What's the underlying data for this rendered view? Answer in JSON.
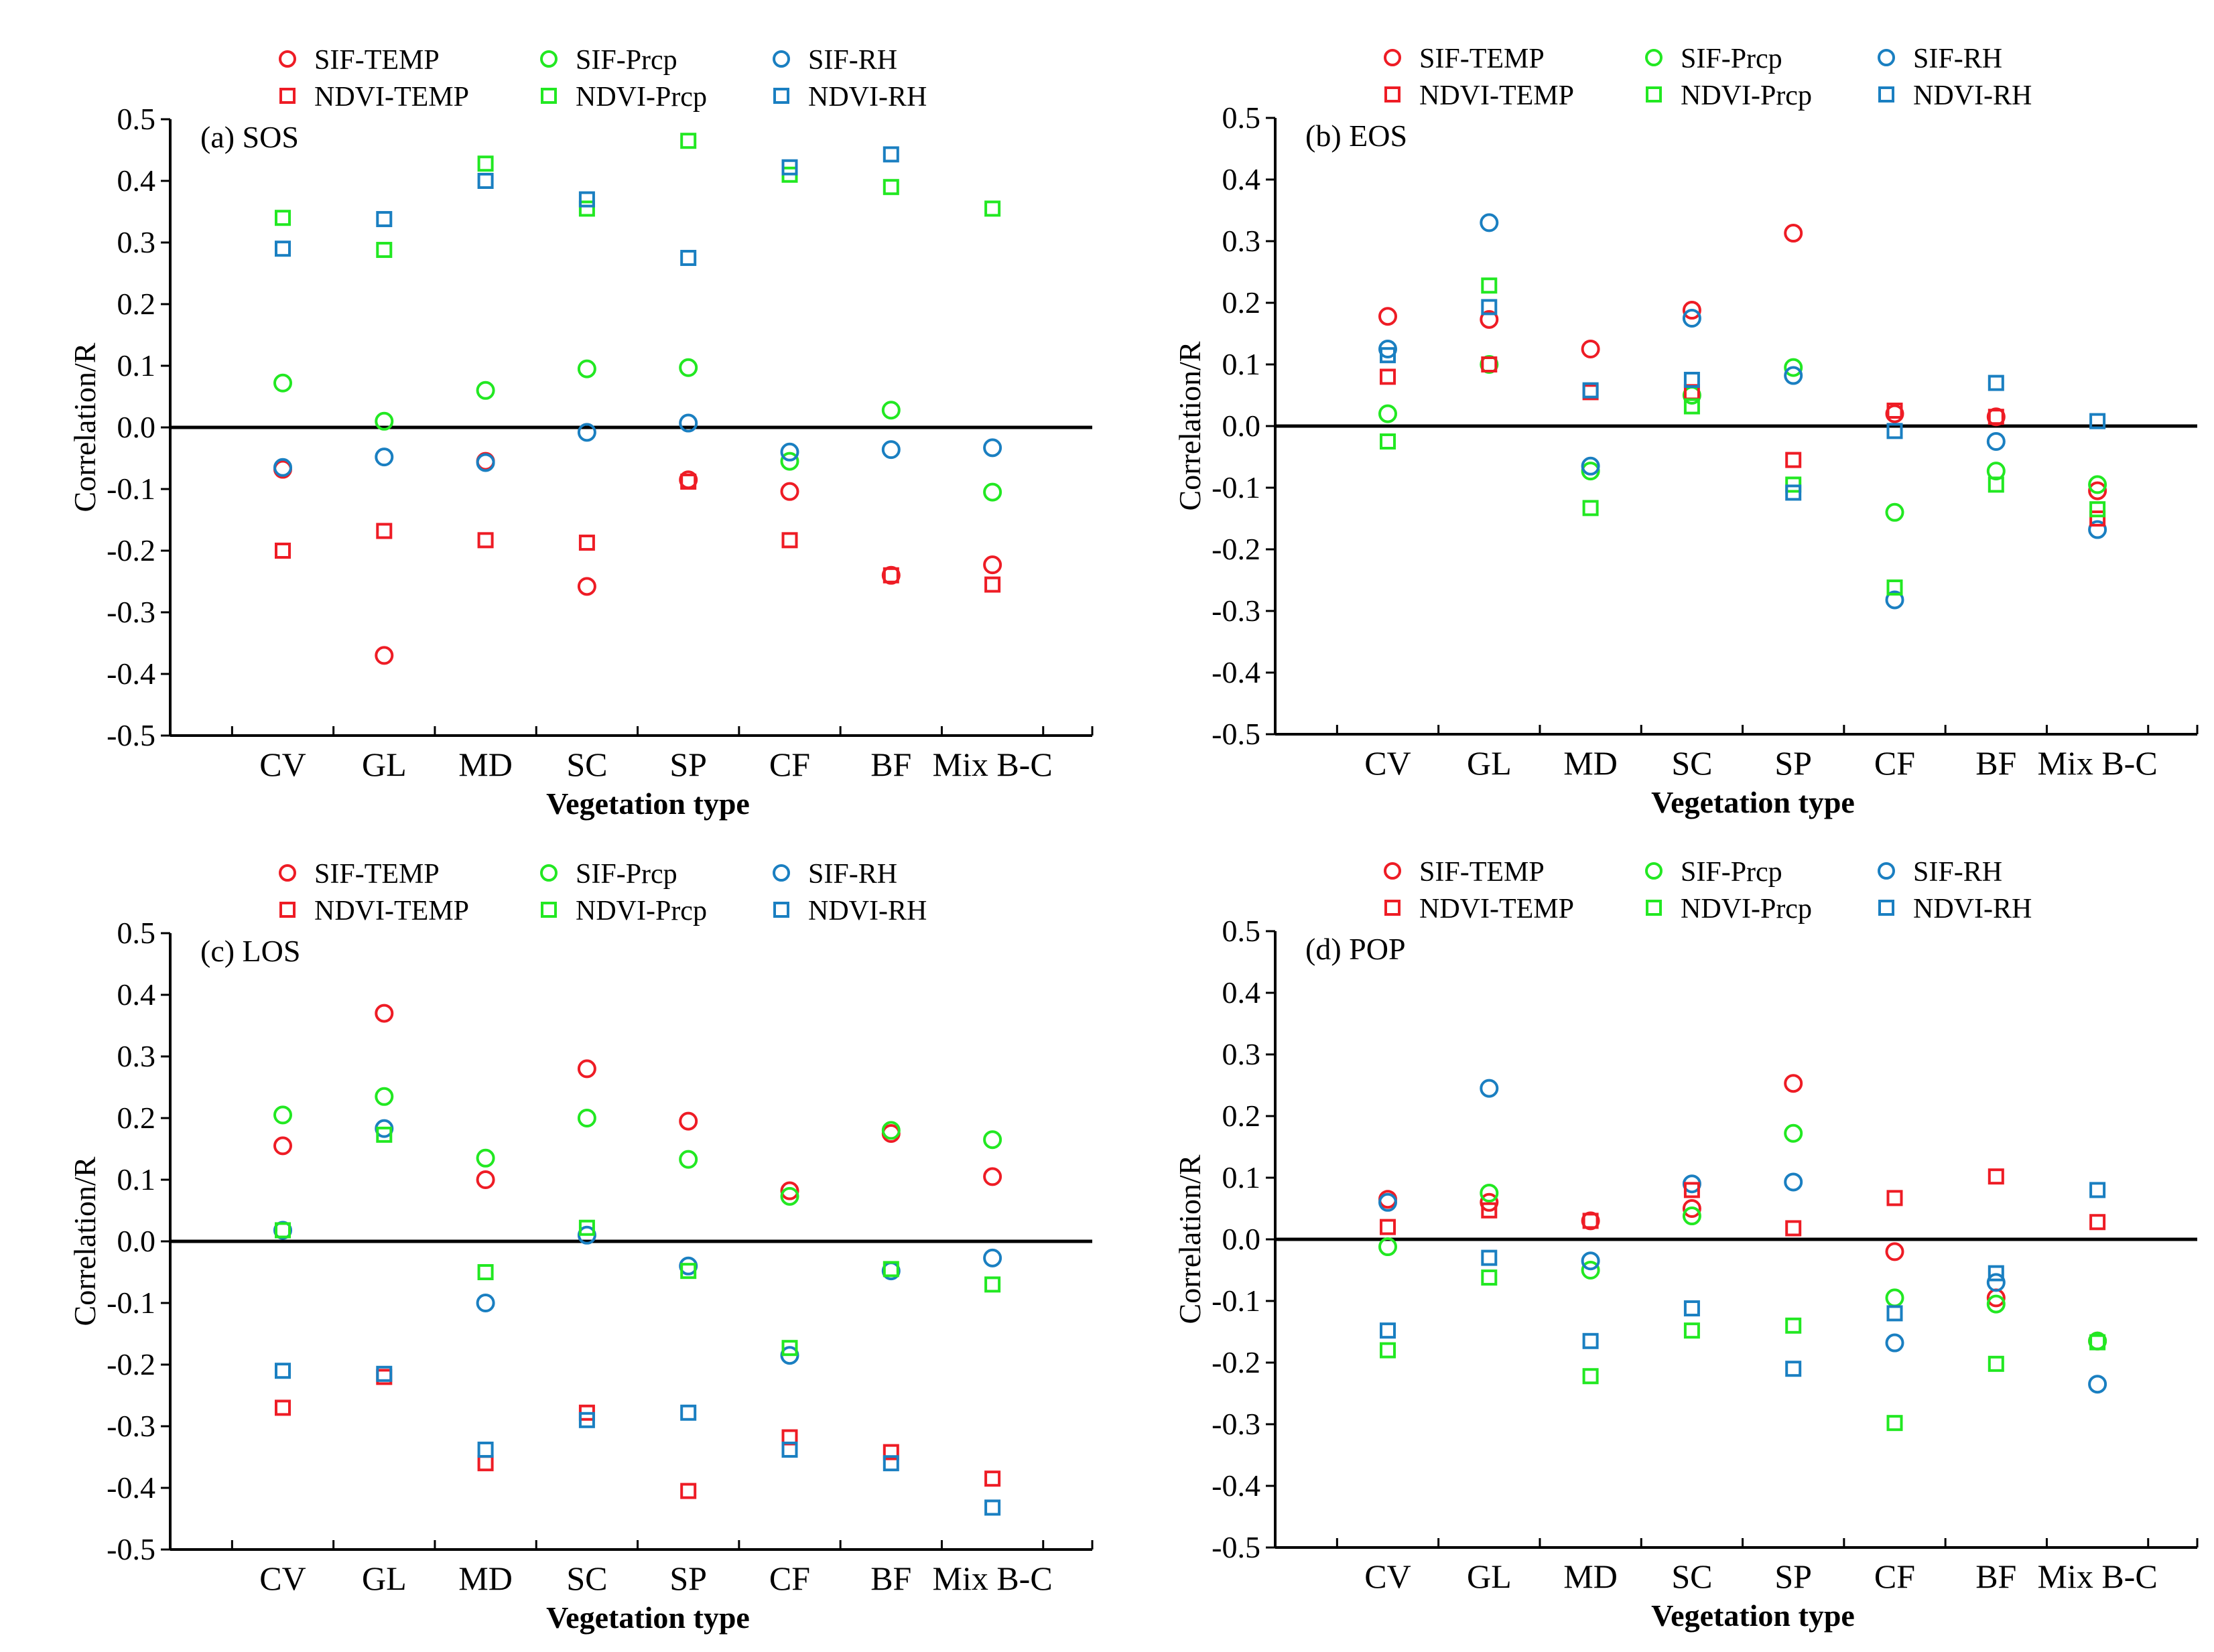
{
  "figure": {
    "description_labels": "Correlation between phenology metrics and climate factors by vegetation type"
  },
  "series_styles": [
    {
      "name": "SIF-TEMP",
      "marker": "circle",
      "color": "#ee1c25"
    },
    {
      "name": "SIF-Prcp",
      "marker": "circle",
      "color": "#22e822"
    },
    {
      "name": "SIF-RH",
      "marker": "circle",
      "color": "#1a7fc1"
    },
    {
      "name": "NDVI-TEMP",
      "marker": "square",
      "color": "#ee1c25"
    },
    {
      "name": "NDVI-Prcp",
      "marker": "square",
      "color": "#22e822"
    },
    {
      "name": "NDVI-RH",
      "marker": "square",
      "color": "#1a7fc1"
    }
  ],
  "chart_data": [
    {
      "type": "scatter",
      "title": "(a) SOS",
      "xlabel": "Vegetation type",
      "ylabel": "Correlation/R",
      "ylim": [
        -0.5,
        0.5
      ],
      "yticks": [
        "0.5",
        "0.4",
        "0.3",
        "0.2",
        "0.1",
        "0.0",
        "-0.1",
        "-0.2",
        "-0.3",
        "-0.4",
        "-0.5"
      ],
      "categories": [
        "CV",
        "GL",
        "MD",
        "SC",
        "SP",
        "CF",
        "BF",
        "Mix B-C"
      ],
      "legend": [
        "SIF-TEMP",
        "SIF-Prcp",
        "SIF-RH",
        "NDVI-TEMP",
        "NDVI-Prcp",
        "NDVI-RH"
      ],
      "series": [
        {
          "name": "SIF-TEMP",
          "values": [
            -0.068,
            -0.37,
            -0.055,
            -0.258,
            -0.085,
            -0.104,
            -0.24,
            -0.223
          ]
        },
        {
          "name": "SIF-Prcp",
          "values": [
            0.072,
            0.01,
            0.06,
            0.095,
            0.097,
            -0.055,
            0.028,
            -0.105
          ]
        },
        {
          "name": "SIF-RH",
          "values": [
            -0.065,
            -0.048,
            -0.057,
            -0.008,
            0.007,
            -0.04,
            -0.036,
            -0.033
          ]
        },
        {
          "name": "NDVI-TEMP",
          "values": [
            -0.2,
            -0.168,
            -0.183,
            -0.187,
            -0.088,
            -0.183,
            -0.24,
            -0.255
          ]
        },
        {
          "name": "NDVI-Prcp",
          "values": [
            0.34,
            0.288,
            0.428,
            0.355,
            0.465,
            0.41,
            0.39,
            0.355
          ]
        },
        {
          "name": "NDVI-RH",
          "values": [
            0.29,
            0.338,
            0.4,
            0.37,
            0.275,
            0.422,
            0.443,
            null
          ]
        }
      ]
    },
    {
      "type": "scatter",
      "title": "(b) EOS",
      "xlabel": "Vegetation type",
      "ylabel": "Correlation/R",
      "ylim": [
        -0.5,
        0.5
      ],
      "yticks": [
        "0.5",
        "0.4",
        "0.3",
        "0.2",
        "0.1",
        "0.0",
        "-0.1",
        "-0.2",
        "-0.3",
        "-0.4",
        "-0.5"
      ],
      "categories": [
        "CV",
        "GL",
        "MD",
        "SC",
        "SP",
        "CF",
        "BF",
        "Mix B-C"
      ],
      "legend": [
        "SIF-TEMP",
        "SIF-Prcp",
        "SIF-RH",
        "NDVI-TEMP",
        "NDVI-Prcp",
        "NDVI-RH"
      ],
      "series": [
        {
          "name": "SIF-TEMP",
          "values": [
            0.178,
            0.173,
            0.125,
            0.188,
            0.313,
            0.02,
            0.015,
            -0.105
          ]
        },
        {
          "name": "SIF-Prcp",
          "values": [
            0.02,
            0.1,
            -0.073,
            0.05,
            0.095,
            -0.14,
            -0.073,
            -0.095
          ]
        },
        {
          "name": "SIF-RH",
          "values": [
            0.125,
            0.33,
            -0.065,
            0.175,
            0.082,
            -0.282,
            -0.025,
            -0.168
          ]
        },
        {
          "name": "NDVI-TEMP",
          "values": [
            0.08,
            0.1,
            0.055,
            0.055,
            -0.055,
            0.025,
            0.015,
            -0.15
          ]
        },
        {
          "name": "NDVI-Prcp",
          "values": [
            -0.025,
            0.228,
            -0.133,
            0.032,
            -0.095,
            -0.262,
            -0.095,
            -0.135
          ]
        },
        {
          "name": "NDVI-RH",
          "values": [
            0.115,
            0.193,
            0.058,
            0.075,
            -0.108,
            -0.008,
            0.07,
            0.008
          ]
        }
      ]
    },
    {
      "type": "scatter",
      "title": "(c) LOS",
      "xlabel": "Vegetation type",
      "ylabel": "Correlation/R",
      "ylim": [
        -0.5,
        0.5
      ],
      "yticks": [
        "0.5",
        "0.4",
        "0.3",
        "0.2",
        "0.1",
        "0.0",
        "-0.1",
        "-0.2",
        "-0.3",
        "-0.4",
        "-0.5"
      ],
      "categories": [
        "CV",
        "GL",
        "MD",
        "SC",
        "SP",
        "CF",
        "BF",
        "Mix B-C"
      ],
      "legend": [
        "SIF-TEMP",
        "SIF-Prcp",
        "SIF-RH",
        "NDVI-TEMP",
        "NDVI-Prcp",
        "NDVI-RH"
      ],
      "series": [
        {
          "name": "SIF-TEMP",
          "values": [
            0.155,
            0.37,
            0.1,
            0.28,
            0.195,
            0.082,
            0.175,
            0.105
          ]
        },
        {
          "name": "SIF-Prcp",
          "values": [
            0.205,
            0.235,
            0.135,
            0.2,
            0.133,
            0.073,
            0.18,
            0.165
          ]
        },
        {
          "name": "SIF-RH",
          "values": [
            0.018,
            0.183,
            -0.1,
            0.01,
            -0.04,
            -0.185,
            -0.048,
            -0.027
          ]
        },
        {
          "name": "NDVI-TEMP",
          "values": [
            -0.27,
            -0.22,
            -0.36,
            -0.278,
            -0.405,
            -0.318,
            -0.342,
            -0.385
          ]
        },
        {
          "name": "NDVI-Prcp",
          "values": [
            0.018,
            0.173,
            -0.05,
            0.022,
            -0.048,
            -0.173,
            -0.045,
            -0.07
          ]
        },
        {
          "name": "NDVI-RH",
          "values": [
            -0.21,
            -0.215,
            -0.338,
            -0.29,
            -0.278,
            -0.338,
            -0.36,
            -0.432
          ]
        }
      ]
    },
    {
      "type": "scatter",
      "title": "(d) POP",
      "xlabel": "Vegetation type",
      "ylabel": "Correlation/R",
      "ylim": [
        -0.5,
        0.5
      ],
      "yticks": [
        "0.5",
        "0.4",
        "0.3",
        "0.2",
        "0.1",
        "0.0",
        "-0.1",
        "-0.2",
        "-0.3",
        "-0.4",
        "-0.5"
      ],
      "categories": [
        "CV",
        "GL",
        "MD",
        "SC",
        "SP",
        "CF",
        "BF",
        "Mix B-C"
      ],
      "legend": [
        "SIF-TEMP",
        "SIF-Prcp",
        "SIF-RH",
        "NDVI-TEMP",
        "NDVI-Prcp",
        "NDVI-RH"
      ],
      "series": [
        {
          "name": "SIF-TEMP",
          "values": [
            0.065,
            0.06,
            0.03,
            0.05,
            0.253,
            -0.02,
            -0.095,
            -0.165
          ]
        },
        {
          "name": "SIF-Prcp",
          "values": [
            -0.012,
            0.075,
            -0.05,
            0.038,
            0.172,
            -0.095,
            -0.105,
            -0.165
          ]
        },
        {
          "name": "SIF-RH",
          "values": [
            0.06,
            0.245,
            -0.035,
            0.09,
            0.093,
            -0.168,
            -0.07,
            -0.235
          ]
        },
        {
          "name": "NDVI-TEMP",
          "values": [
            0.02,
            0.047,
            0.03,
            0.08,
            0.018,
            0.067,
            0.102,
            0.028
          ]
        },
        {
          "name": "NDVI-Prcp",
          "values": [
            -0.18,
            -0.062,
            -0.222,
            -0.148,
            -0.14,
            -0.298,
            -0.202,
            -0.167
          ]
        },
        {
          "name": "NDVI-RH",
          "values": [
            -0.148,
            -0.03,
            -0.165,
            -0.112,
            -0.21,
            -0.12,
            -0.055,
            0.08
          ]
        }
      ]
    }
  ]
}
